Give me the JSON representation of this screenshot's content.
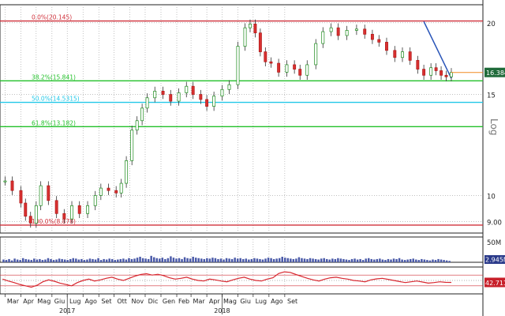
{
  "chart_data": {
    "type": "line",
    "title": "",
    "scale": "log",
    "axis_label": "Log",
    "price": {
      "ylim": [
        8.6,
        21.5
      ],
      "ticks": [
        9.0,
        10,
        15,
        20
      ],
      "tick_labels": [
        "9.00",
        "10",
        "15",
        "20"
      ],
      "last_value": 16.384,
      "last_label": "16.384",
      "fib_levels": [
        {
          "label": "0.0%(20.145)",
          "value": 20.145,
          "color": "#d0303a"
        },
        {
          "label": "38.2%(15.841)",
          "value": 15.841,
          "color": "#22c02a"
        },
        {
          "label": "50.0%(14.5315)",
          "value": 14.5315,
          "color": "#22c8e8"
        },
        {
          "label": "61.8%(13.182)",
          "value": 13.182,
          "color": "#22c02a"
        },
        {
          "label": "100.0%(8.878)",
          "value": 8.878,
          "color": "#d0303a"
        }
      ],
      "trendline": {
        "from": [
          "2018-06-01",
          20.1
        ],
        "to": [
          "2018-07-25",
          16.0
        ],
        "color": "#2a55b8"
      },
      "series": [
        {
          "x": "2016-03-01",
          "y": 10.6
        },
        {
          "x": "2016-03-15",
          "y": 10.2
        },
        {
          "x": "2016-04-01",
          "y": 9.7
        },
        {
          "x": "2016-04-10",
          "y": 9.2
        },
        {
          "x": "2016-04-20",
          "y": 8.95
        },
        {
          "x": "2016-05-01",
          "y": 9.6
        },
        {
          "x": "2016-05-10",
          "y": 10.4
        },
        {
          "x": "2016-05-25",
          "y": 9.8
        },
        {
          "x": "2016-06-10",
          "y": 9.3
        },
        {
          "x": "2016-06-25",
          "y": 9.1
        },
        {
          "x": "2016-07-10",
          "y": 9.6
        },
        {
          "x": "2016-07-25",
          "y": 9.3
        },
        {
          "x": "2016-08-10",
          "y": 9.6
        },
        {
          "x": "2016-08-25",
          "y": 10.0
        },
        {
          "x": "2016-09-05",
          "y": 10.3
        },
        {
          "x": "2016-09-20",
          "y": 10.2
        },
        {
          "x": "2016-10-05",
          "y": 10.1
        },
        {
          "x": "2016-10-15",
          "y": 10.5
        },
        {
          "x": "2016-10-25",
          "y": 11.5
        },
        {
          "x": "2016-11-05",
          "y": 13.0
        },
        {
          "x": "2016-11-15",
          "y": 13.5
        },
        {
          "x": "2016-11-25",
          "y": 14.2
        },
        {
          "x": "2016-12-05",
          "y": 14.8
        },
        {
          "x": "2016-12-20",
          "y": 15.2
        },
        {
          "x": "2017-01-05",
          "y": 15.0
        },
        {
          "x": "2017-01-20",
          "y": 14.6
        },
        {
          "x": "2017-02-05",
          "y": 15.1
        },
        {
          "x": "2017-02-20",
          "y": 15.5
        },
        {
          "x": "2017-03-05",
          "y": 15.0
        },
        {
          "x": "2017-03-20",
          "y": 14.7
        },
        {
          "x": "2017-04-01",
          "y": 14.3
        },
        {
          "x": "2017-04-15",
          "y": 14.9
        },
        {
          "x": "2017-05-01",
          "y": 15.3
        },
        {
          "x": "2017-05-15",
          "y": 15.6
        },
        {
          "x": "2017-06-01",
          "y": 18.2
        },
        {
          "x": "2017-06-15",
          "y": 19.6
        },
        {
          "x": "2017-06-25",
          "y": 19.9
        },
        {
          "x": "2017-07-05",
          "y": 19.2
        },
        {
          "x": "2017-07-15",
          "y": 17.8
        },
        {
          "x": "2017-07-25",
          "y": 17.1
        },
        {
          "x": "2017-08-05",
          "y": 17.0
        },
        {
          "x": "2017-08-20",
          "y": 16.4
        },
        {
          "x": "2017-09-05",
          "y": 16.9
        },
        {
          "x": "2017-09-20",
          "y": 16.6
        },
        {
          "x": "2017-10-01",
          "y": 16.2
        },
        {
          "x": "2017-10-15",
          "y": 16.9
        },
        {
          "x": "2017-11-01",
          "y": 18.4
        },
        {
          "x": "2017-11-15",
          "y": 19.3
        },
        {
          "x": "2017-12-01",
          "y": 19.6
        },
        {
          "x": "2017-12-15",
          "y": 19.0
        },
        {
          "x": "2018-01-01",
          "y": 19.4
        },
        {
          "x": "2018-01-20",
          "y": 19.5
        },
        {
          "x": "2018-02-05",
          "y": 19.1
        },
        {
          "x": "2018-02-20",
          "y": 18.7
        },
        {
          "x": "2018-03-05",
          "y": 18.5
        },
        {
          "x": "2018-03-20",
          "y": 17.9
        },
        {
          "x": "2018-04-05",
          "y": 17.4
        },
        {
          "x": "2018-04-20",
          "y": 17.8
        },
        {
          "x": "2018-05-05",
          "y": 17.2
        },
        {
          "x": "2018-05-20",
          "y": 16.6
        },
        {
          "x": "2018-06-01",
          "y": 16.2
        },
        {
          "x": "2018-06-15",
          "y": 16.7
        },
        {
          "x": "2018-06-25",
          "y": 16.5
        },
        {
          "x": "2018-07-05",
          "y": 16.2
        },
        {
          "x": "2018-07-15",
          "y": 16.1
        },
        {
          "x": "2018-07-25",
          "y": 16.384
        }
      ]
    },
    "volume": {
      "tick_label": "50M",
      "last_label": "2.945M",
      "ylim": [
        0,
        55
      ],
      "values": [
        6,
        5,
        7,
        4,
        8,
        6,
        5,
        9,
        7,
        6,
        5,
        8,
        6,
        7,
        5,
        6,
        9,
        7,
        5,
        6,
        8,
        7,
        6,
        5,
        7,
        9,
        8,
        6,
        7,
        5,
        6,
        8,
        7,
        6,
        9,
        5,
        7,
        6,
        8,
        7,
        5,
        6,
        7,
        8,
        6,
        9,
        7,
        8,
        10,
        12,
        9,
        8,
        7,
        14,
        11,
        9,
        8,
        10,
        7,
        9,
        13,
        10,
        8,
        9,
        7,
        11,
        9,
        8,
        12,
        10,
        9,
        8,
        7,
        9,
        8,
        10,
        9,
        7,
        8,
        6,
        9,
        8,
        7,
        10,
        8,
        9,
        7,
        8,
        6,
        7,
        9,
        8,
        7,
        6,
        8,
        10,
        9,
        7,
        8,
        9,
        12,
        10,
        9,
        8,
        7,
        8,
        11,
        9,
        8,
        7,
        9,
        8,
        7,
        6,
        8,
        9,
        7,
        6,
        8,
        7,
        9,
        8,
        7,
        6,
        5,
        7,
        8,
        6,
        7,
        5,
        8,
        9,
        7,
        6,
        7,
        8,
        6,
        5,
        7,
        6,
        8,
        7,
        9,
        6,
        5,
        6,
        7,
        8,
        6,
        5,
        7,
        6,
        5,
        4,
        6,
        5,
        7,
        6,
        5,
        4,
        3
      ]
    },
    "rsi": {
      "last_label": "42.711",
      "ylim": [
        0,
        100
      ],
      "bands": [
        30,
        50,
        70
      ],
      "values": [
        55,
        48,
        42,
        35,
        30,
        25,
        32,
        45,
        52,
        47,
        40,
        35,
        30,
        42,
        50,
        55,
        48,
        52,
        58,
        62,
        55,
        50,
        58,
        66,
        72,
        75,
        70,
        73,
        68,
        60,
        55,
        58,
        62,
        55,
        50,
        48,
        55,
        52,
        48,
        45,
        52,
        58,
        62,
        55,
        50,
        48,
        55,
        60,
        76,
        82,
        80,
        72,
        65,
        58,
        52,
        48,
        55,
        60,
        62,
        58,
        55,
        50,
        48,
        45,
        52,
        56,
        58,
        54,
        50,
        46,
        42,
        45,
        48,
        44,
        40,
        42,
        45,
        43,
        42.711
      ]
    },
    "x_axis": {
      "months": [
        "Mar",
        "Apr",
        "Mag",
        "Giu",
        "Lug",
        "Ago",
        "Set",
        "Ott",
        "Nov",
        "Dic",
        "Gen",
        "Feb",
        "Mar",
        "Apr",
        "Mag",
        "Giu",
        "Lug",
        "Ago",
        "Set"
      ],
      "years": [
        {
          "label": "2017",
          "month_index": 4
        },
        {
          "label": "2018",
          "month_index": 14
        }
      ]
    }
  }
}
